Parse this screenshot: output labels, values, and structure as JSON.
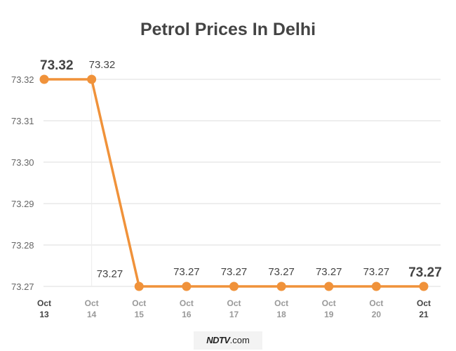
{
  "chart_data": {
    "type": "line",
    "title": "Petrol Prices In Delhi",
    "x": [
      [
        "Oct",
        "13"
      ],
      [
        "Oct",
        "14"
      ],
      [
        "Oct",
        "15"
      ],
      [
        "Oct",
        "16"
      ],
      [
        "Oct",
        "17"
      ],
      [
        "Oct",
        "18"
      ],
      [
        "Oct",
        "19"
      ],
      [
        "Oct",
        "20"
      ],
      [
        "Oct",
        "21"
      ]
    ],
    "values": [
      73.32,
      73.32,
      73.27,
      73.27,
      73.27,
      73.27,
      73.27,
      73.27,
      73.27
    ],
    "data_labels": [
      "73.32",
      "73.32",
      "73.27",
      "73.27",
      "73.27",
      "73.27",
      "73.27",
      "73.27",
      "73.27"
    ],
    "yticks": [
      "73.27",
      "73.28",
      "73.29",
      "73.30",
      "73.31",
      "73.32"
    ],
    "ylim": [
      73.27,
      73.32
    ],
    "grid": true,
    "legend": "none",
    "color": "#f0923a",
    "emphasis_color": "#e8892c"
  },
  "footer": {
    "brand": "NDTV",
    "suffix": ".com"
  }
}
